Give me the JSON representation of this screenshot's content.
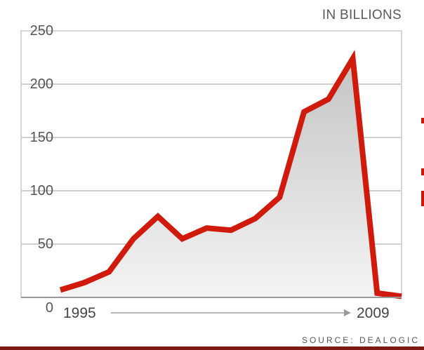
{
  "chart_data": {
    "type": "area",
    "unit_label": "IN BILLIONS",
    "source": "SOURCE: DEALOGIC",
    "x_start_label": "1995",
    "x_end_label": "2009",
    "x": [
      1995,
      1996,
      1997,
      1998,
      1999,
      2000,
      2001,
      2002,
      2003,
      2004,
      2005,
      2006,
      2007,
      2008,
      2009
    ],
    "series": [
      {
        "values": [
          7,
          14,
          24,
          55,
          76,
          55,
          65,
          63,
          74,
          94,
          174,
          186,
          224,
          4,
          1
        ]
      }
    ],
    "ylim": [
      0,
      250
    ],
    "y_ticks": [
      "0",
      "50",
      "100",
      "150",
      "200",
      "250"
    ],
    "grid": true,
    "series_color": "#d01a0c",
    "fill_color": "#d9d9d9"
  }
}
